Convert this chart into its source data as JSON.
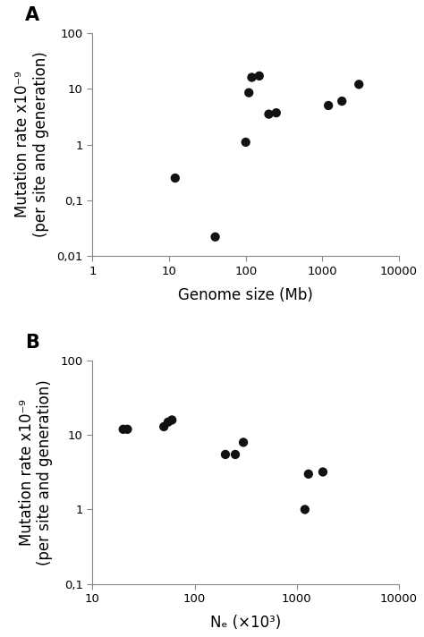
{
  "panel_A": {
    "label": "A",
    "x": [
      12,
      40,
      100,
      110,
      120,
      150,
      200,
      250,
      1200,
      1800,
      3000
    ],
    "y": [
      0.25,
      0.022,
      1.1,
      8.5,
      16,
      17,
      3.5,
      3.7,
      5.0,
      6.0,
      12
    ],
    "xlabel": "Genome size (Mb)",
    "ylabel": "Mutation rate x10⁻⁹\n(per site and generation)",
    "xlim": [
      1,
      10000
    ],
    "ylim": [
      0.01,
      100
    ],
    "xticks": [
      1,
      10,
      100,
      1000,
      10000
    ],
    "yticks": [
      0.01,
      0.1,
      1,
      10,
      100
    ],
    "ytick_labels": [
      "0,01",
      "0,1",
      "1",
      "10",
      "100"
    ],
    "xtick_labels": [
      "1",
      "10",
      "100",
      "1000",
      "10000"
    ]
  },
  "panel_B": {
    "label": "B",
    "x": [
      20,
      22,
      50,
      55,
      60,
      200,
      250,
      300,
      1200,
      1300,
      1800
    ],
    "y": [
      12,
      12,
      13,
      15,
      16,
      5.5,
      5.5,
      8.0,
      1.0,
      3.0,
      3.2
    ],
    "xlabel": "Nₑ (×10³)",
    "ylabel": "Mutation rate x10⁻⁹\n(per site and generation)",
    "xlim": [
      10,
      10000
    ],
    "ylim": [
      0.1,
      100
    ],
    "xticks": [
      10,
      100,
      1000,
      10000
    ],
    "yticks": [
      0.1,
      1,
      10,
      100
    ],
    "ytick_labels": [
      "0,1",
      "1",
      "10",
      "100"
    ],
    "xtick_labels": [
      "10",
      "100",
      "1000",
      "10000"
    ]
  },
  "dot_color": "#111111",
  "dot_size": 55,
  "background_color": "#ffffff",
  "spine_color": "#888888",
  "font_family": "DejaVu Sans",
  "tick_label_fontsize": 9.5,
  "axis_label_fontsize": 12,
  "panel_label_fontsize": 15
}
